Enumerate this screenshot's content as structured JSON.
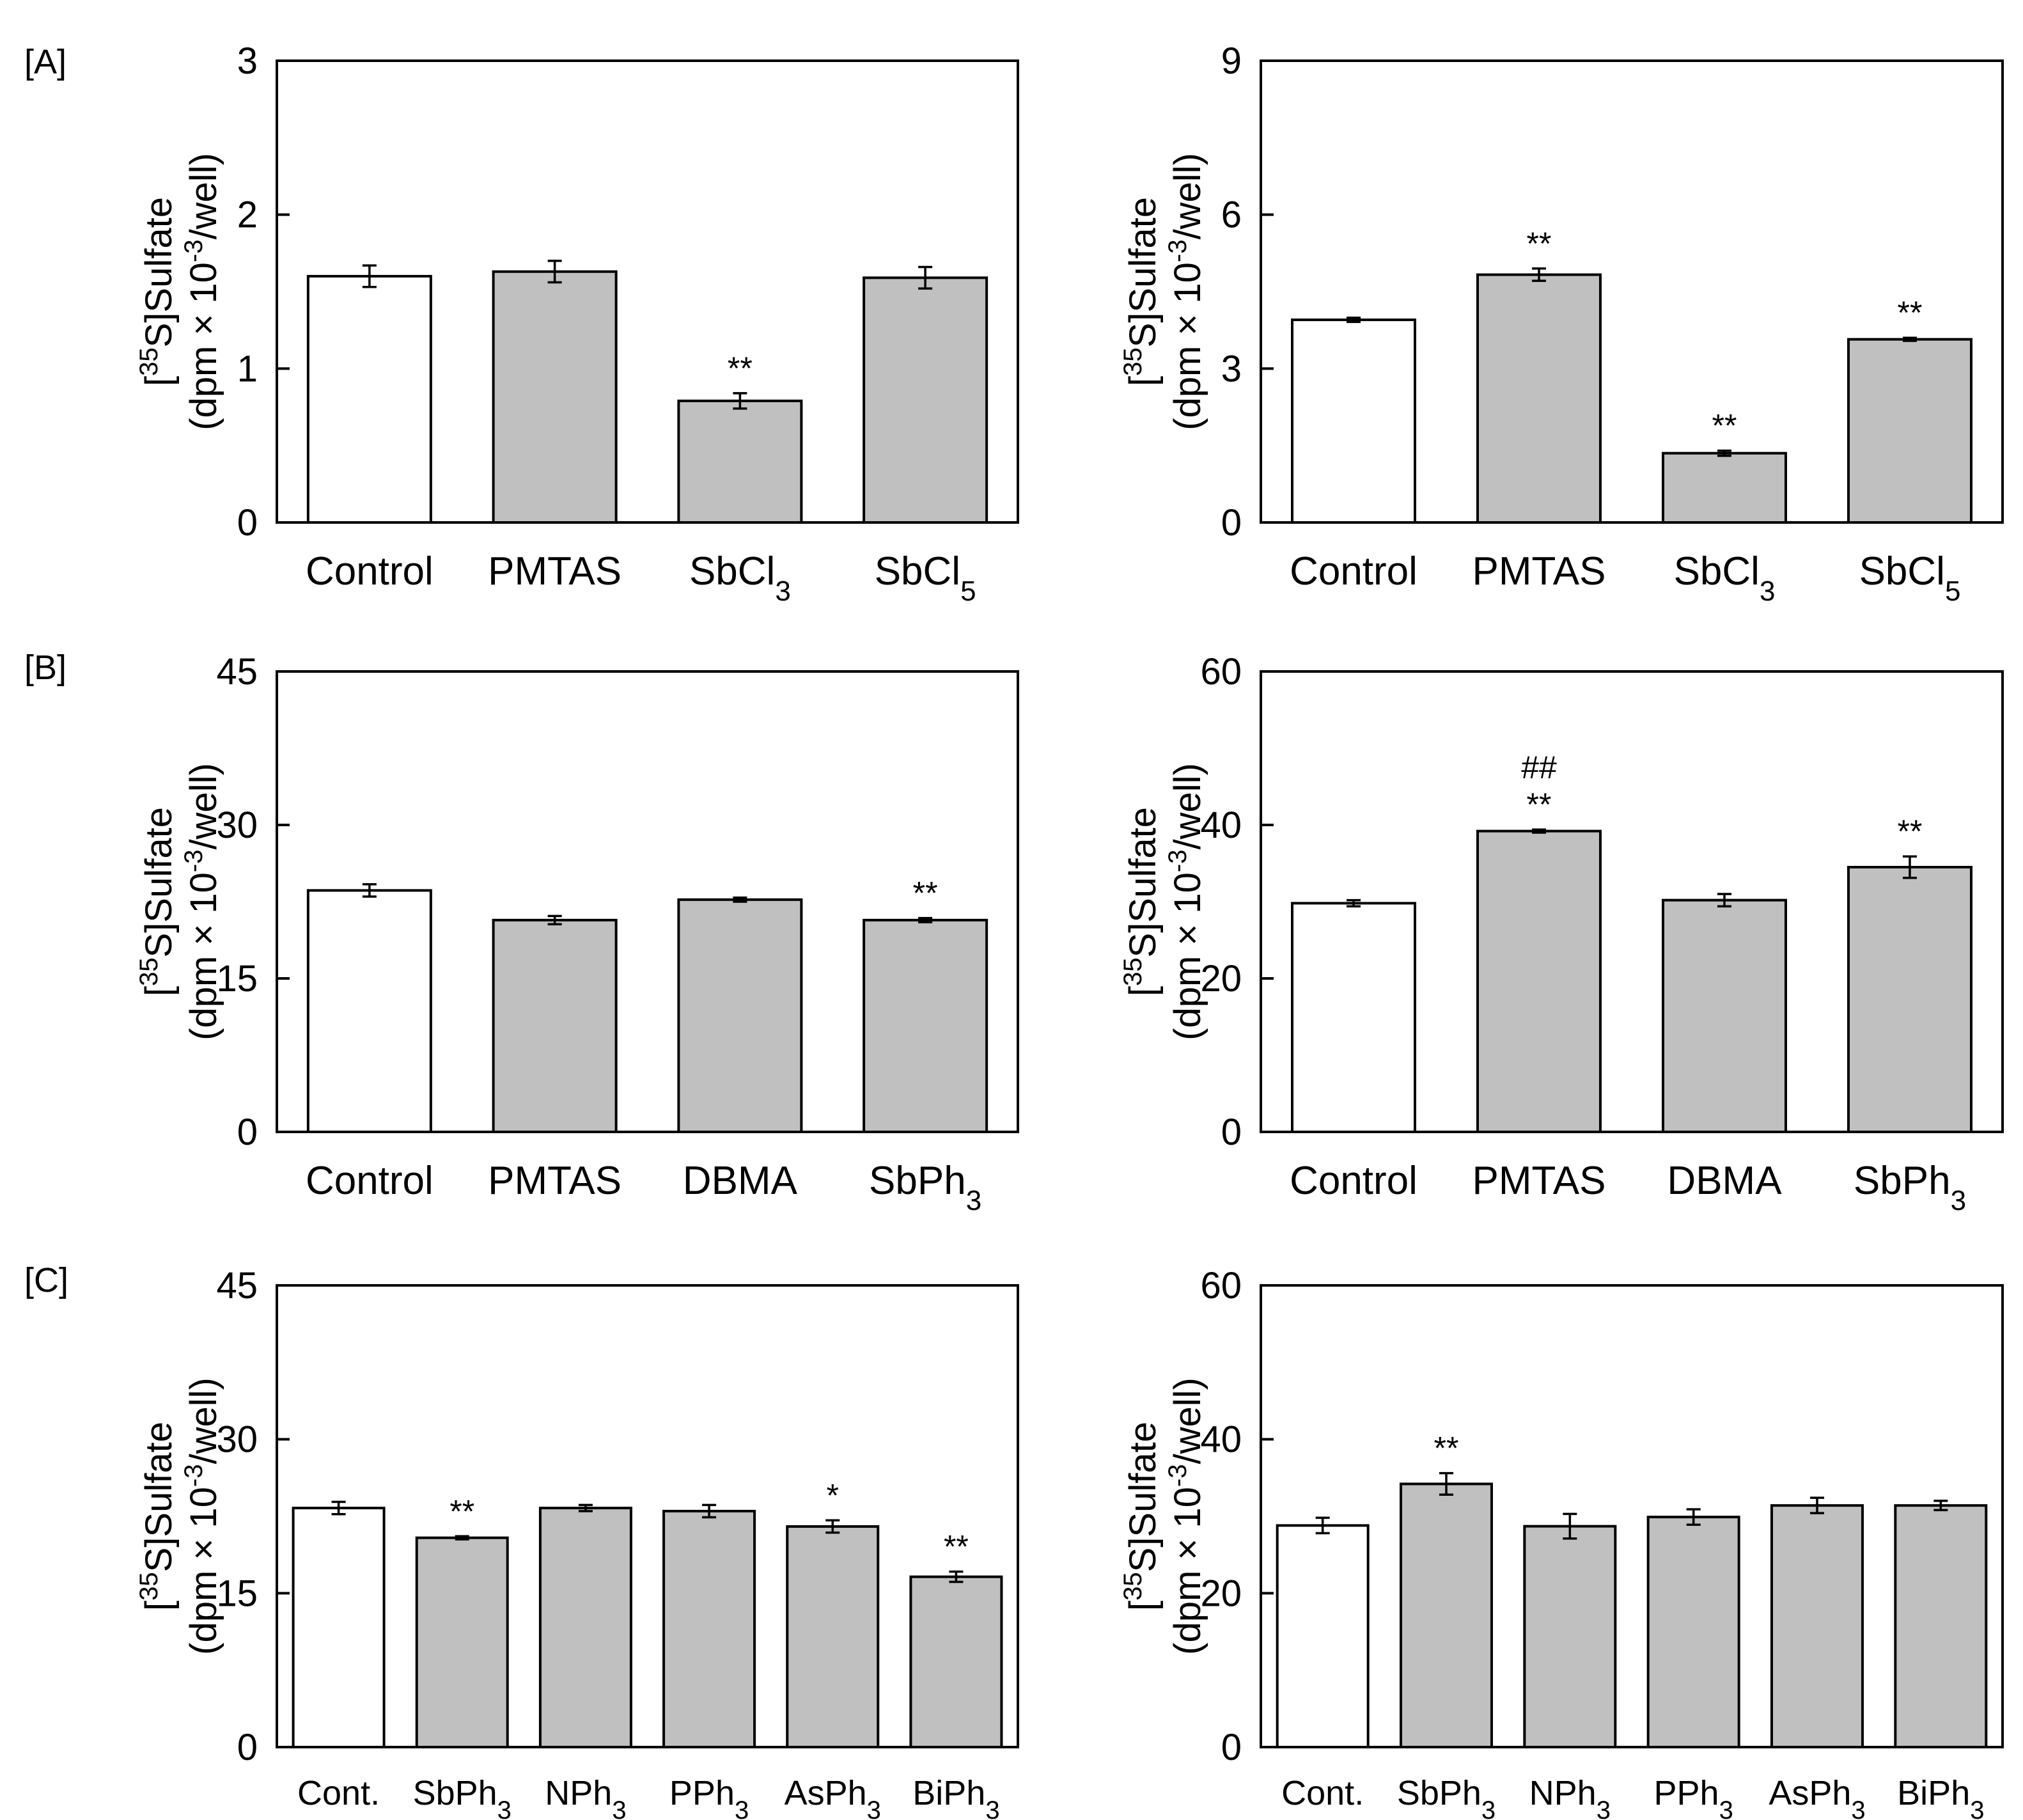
{
  "figure": {
    "panel_labels": [
      "[A]",
      "[B]",
      "[C]"
    ],
    "ylabel_line1": "[35S]Sulfate",
    "ylabel_line2": "(dpm × 10-3/well)"
  },
  "colors": {
    "control_fill": "#ffffff",
    "treatment_fill": "#c0c0c0",
    "axis": "#000000"
  },
  "chart_data": [
    {
      "id": "A-left",
      "panel": "[A]",
      "type": "bar",
      "ylabel": "[35S]Sulfate (dpm × 10-3/well)",
      "ylim": [
        0,
        3
      ],
      "yticks": [
        0,
        1,
        2,
        3
      ],
      "categories": [
        {
          "name": "Control",
          "sub": ""
        },
        {
          "name": "PMTAS",
          "sub": ""
        },
        {
          "name": "SbCl",
          "sub": "3"
        },
        {
          "name": "SbCl",
          "sub": "5"
        }
      ],
      "values": [
        1.6,
        1.63,
        0.79,
        1.59
      ],
      "errors": [
        0.07,
        0.07,
        0.05,
        0.07
      ],
      "annotations": [
        [],
        [],
        [
          "**"
        ],
        []
      ]
    },
    {
      "id": "A-right",
      "panel": "",
      "type": "bar",
      "ylabel": "[35S]Sulfate (dpm × 10-3/well)",
      "ylim": [
        0,
        9
      ],
      "yticks": [
        0,
        3,
        6,
        9
      ],
      "categories": [
        {
          "name": "Control",
          "sub": ""
        },
        {
          "name": "PMTAS",
          "sub": ""
        },
        {
          "name": "SbCl",
          "sub": "3"
        },
        {
          "name": "SbCl",
          "sub": "5"
        }
      ],
      "values": [
        3.95,
        4.83,
        1.35,
        3.57
      ],
      "errors": [
        0.04,
        0.12,
        0.05,
        0.03
      ],
      "annotations": [
        [],
        [
          "**"
        ],
        [
          "**"
        ],
        [
          "**"
        ]
      ]
    },
    {
      "id": "B-left",
      "panel": "[B]",
      "type": "bar",
      "ylabel": "[35S]Sulfate (dpm × 10-3/well)",
      "ylim": [
        0,
        45
      ],
      "yticks": [
        0,
        15,
        30,
        45
      ],
      "categories": [
        {
          "name": "Control",
          "sub": ""
        },
        {
          "name": "PMTAS",
          "sub": ""
        },
        {
          "name": "DBMA",
          "sub": ""
        },
        {
          "name": "SbPh",
          "sub": "3"
        }
      ],
      "values": [
        23.6,
        20.7,
        22.7,
        20.7
      ],
      "errors": [
        0.6,
        0.4,
        0.2,
        0.2
      ],
      "annotations": [
        [],
        [],
        [],
        [
          "**"
        ]
      ]
    },
    {
      "id": "B-right",
      "panel": "",
      "type": "bar",
      "ylabel": "[35S]Sulfate (dpm × 10-3/well)",
      "ylim": [
        0,
        60
      ],
      "yticks": [
        0,
        20,
        40,
        60
      ],
      "categories": [
        {
          "name": "Control",
          "sub": ""
        },
        {
          "name": "PMTAS",
          "sub": ""
        },
        {
          "name": "DBMA",
          "sub": ""
        },
        {
          "name": "SbPh",
          "sub": "3"
        }
      ],
      "values": [
        29.8,
        39.2,
        30.2,
        34.5
      ],
      "errors": [
        0.4,
        0.2,
        0.8,
        1.4
      ],
      "annotations": [
        [],
        [
          "##",
          "**"
        ],
        [],
        [
          "**"
        ]
      ]
    },
    {
      "id": "C-left",
      "panel": "[C]",
      "type": "bar",
      "ylabel": "[35S]Sulfate (dpm × 10-3/well)",
      "ylim": [
        0,
        45
      ],
      "yticks": [
        0,
        15,
        30,
        45
      ],
      "categories": [
        {
          "name": "Cont.",
          "sub": ""
        },
        {
          "name": "SbPh",
          "sub": "3"
        },
        {
          "name": "NPh",
          "sub": "3"
        },
        {
          "name": "PPh",
          "sub": "3"
        },
        {
          "name": "AsPh",
          "sub": "3"
        },
        {
          "name": "BiPh",
          "sub": "3"
        }
      ],
      "values": [
        23.3,
        20.4,
        23.3,
        23.0,
        21.5,
        16.6
      ],
      "errors": [
        0.6,
        0.15,
        0.3,
        0.6,
        0.6,
        0.5
      ],
      "annotations": [
        [],
        [
          "**"
        ],
        [],
        [],
        [
          "*"
        ],
        [
          "**"
        ]
      ]
    },
    {
      "id": "C-right",
      "panel": "",
      "type": "bar",
      "ylabel": "[35S]Sulfate (dpm × 10-3/well)",
      "ylim": [
        0,
        60
      ],
      "yticks": [
        0,
        20,
        40,
        60
      ],
      "categories": [
        {
          "name": "Cont.",
          "sub": ""
        },
        {
          "name": "SbPh",
          "sub": "3"
        },
        {
          "name": "NPh",
          "sub": "3"
        },
        {
          "name": "PPh",
          "sub": "3"
        },
        {
          "name": "AsPh",
          "sub": "3"
        },
        {
          "name": "BiPh",
          "sub": "3"
        }
      ],
      "values": [
        28.8,
        34.2,
        28.7,
        29.9,
        31.4,
        31.4
      ],
      "errors": [
        1.0,
        1.4,
        1.6,
        1.0,
        1.0,
        0.6
      ],
      "annotations": [
        [],
        [
          "**"
        ],
        [],
        [],
        [],
        []
      ]
    }
  ]
}
